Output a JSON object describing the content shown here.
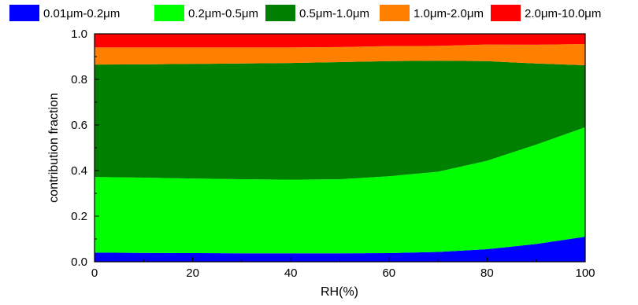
{
  "chart_data": {
    "type": "area",
    "stacked": true,
    "x": [
      0,
      10,
      20,
      30,
      40,
      50,
      60,
      70,
      80,
      90,
      100
    ],
    "series": [
      {
        "name": "0.01μm-0.2μm",
        "color": "#0000ff",
        "values": [
          0.04,
          0.039,
          0.038,
          0.037,
          0.037,
          0.037,
          0.038,
          0.043,
          0.055,
          0.078,
          0.11
        ]
      },
      {
        "name": "0.2μm-0.5μm",
        "color": "#00ff00",
        "values": [
          0.332,
          0.33,
          0.327,
          0.325,
          0.323,
          0.325,
          0.337,
          0.352,
          0.388,
          0.436,
          0.48
        ]
      },
      {
        "name": "0.5μm-1.0μm",
        "color": "#008000",
        "values": [
          0.493,
          0.497,
          0.503,
          0.508,
          0.512,
          0.514,
          0.505,
          0.487,
          0.437,
          0.356,
          0.272
        ]
      },
      {
        "name": "1.0μm-2.0μm",
        "color": "#ff8000",
        "values": [
          0.075,
          0.074,
          0.072,
          0.07,
          0.068,
          0.066,
          0.066,
          0.065,
          0.073,
          0.082,
          0.093
        ]
      },
      {
        "name": "2.0μm-10.0μm",
        "color": "#ff0000",
        "values": [
          0.06,
          0.06,
          0.06,
          0.06,
          0.06,
          0.058,
          0.054,
          0.053,
          0.047,
          0.048,
          0.045
        ]
      }
    ],
    "xlabel": "RH(%)",
    "ylabel": "contribution fraction",
    "xlim": [
      0,
      100
    ],
    "ylim": [
      0,
      1.0
    ],
    "xticks": [
      "0",
      "20",
      "40",
      "60",
      "80",
      "100"
    ],
    "yticks": [
      "0.0",
      "0.2",
      "0.4",
      "0.6",
      "0.8",
      "1.0"
    ],
    "legend_position": "top",
    "grid": false
  }
}
